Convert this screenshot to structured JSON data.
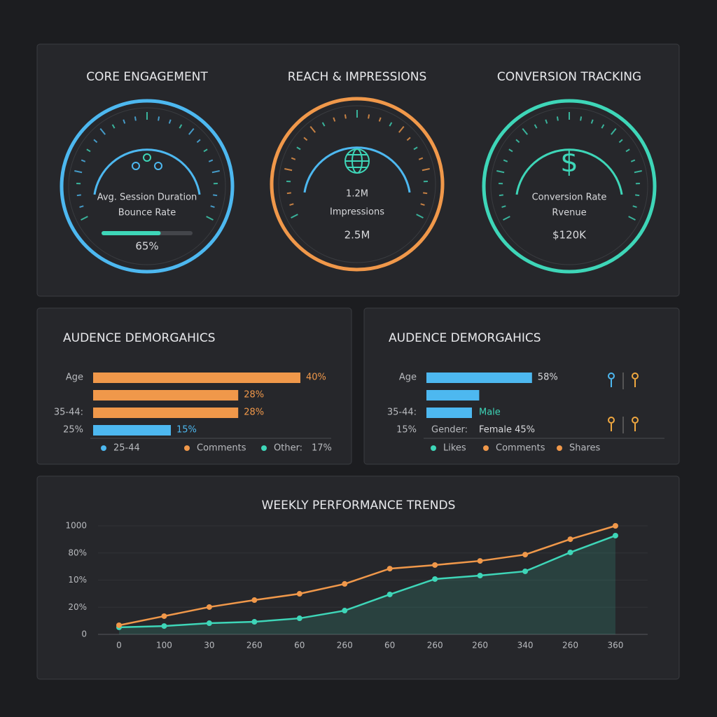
{
  "gauges": [
    {
      "title": "CORE ENGAGEMENT",
      "lines": [
        "Avg. Session Duration",
        "Bounce Rate"
      ],
      "progress": 65,
      "progress_label": "65%",
      "color": "#4db8f0"
    },
    {
      "title": "REACH & IMPRESSIONS",
      "lines": [
        "1.2M",
        "Impressions",
        "2.5M"
      ],
      "color": "#f0984a"
    },
    {
      "title": "CONVERSION TRACKING",
      "icon": "$",
      "lines": [
        "Conversion Rate",
        "Rvenue",
        "$120K"
      ],
      "color": "#3ed6b8"
    }
  ],
  "chart_data": [
    {
      "type": "hbar",
      "title": "AUDENCE DEMORGAHICS",
      "categories": [
        "Age",
        null,
        "35-44:",
        "25%"
      ],
      "values": [
        40,
        28,
        28,
        15
      ],
      "value_labels": [
        "40%",
        "28%",
        "28%",
        "15%"
      ],
      "colors": [
        "#f0984a",
        "#f0984a",
        "#f0984a",
        "#4db8f0"
      ],
      "legend": [
        {
          "label": "25-44",
          "color": "#4db8f0"
        },
        {
          "label": "Comments",
          "color": "#f0984a"
        },
        {
          "label": "Other:",
          "color": "#3ed6b8"
        }
      ],
      "legend_note": "17%"
    },
    {
      "type": "hbar",
      "title": "AUDENCE DEMORGAHICS",
      "categories": [
        "Age",
        null,
        "35-44:",
        "15%"
      ],
      "values": [
        58,
        29,
        25,
        null
      ],
      "value_labels": [
        "58%",
        null,
        null,
        null
      ],
      "colors": [
        "#4db8f0",
        "#4db8f0",
        "#4db8f0",
        "#4db8f0"
      ],
      "annotations": [
        "Male",
        "Gender:",
        "Female 45%"
      ],
      "legend": [
        {
          "label": "Likes",
          "color": "#3ed6b8"
        },
        {
          "label": "Comments",
          "color": "#f0984a"
        },
        {
          "label": "Shares",
          "color": "#f0984a"
        }
      ]
    },
    {
      "type": "line",
      "title": "WEEKLY PERFORMANCE TRENDS",
      "categories": [
        "0",
        "100",
        "30",
        "260",
        "60",
        "260",
        "60",
        "260",
        "260",
        "340",
        "260",
        "360"
      ],
      "series": [
        {
          "color": "#f0984a",
          "values": [
            84,
            168,
            252,
            316,
            374,
            465,
            606,
            639,
            677,
            735,
            877,
            1000
          ]
        },
        {
          "color": "#3ed6b8",
          "fill": true,
          "values": [
            65,
            77,
            103,
            116,
            148,
            219,
            368,
            510,
            542,
            581,
            755,
            910
          ]
        }
      ],
      "ylim": [
        0,
        1000
      ],
      "yticks": [
        {
          "value": 0,
          "label": "0"
        },
        {
          "value": 250,
          "label": "20%"
        },
        {
          "value": 500,
          "label": "10%"
        },
        {
          "value": 750,
          "label": "80%"
        },
        1000
      ],
      "grid": true
    }
  ]
}
